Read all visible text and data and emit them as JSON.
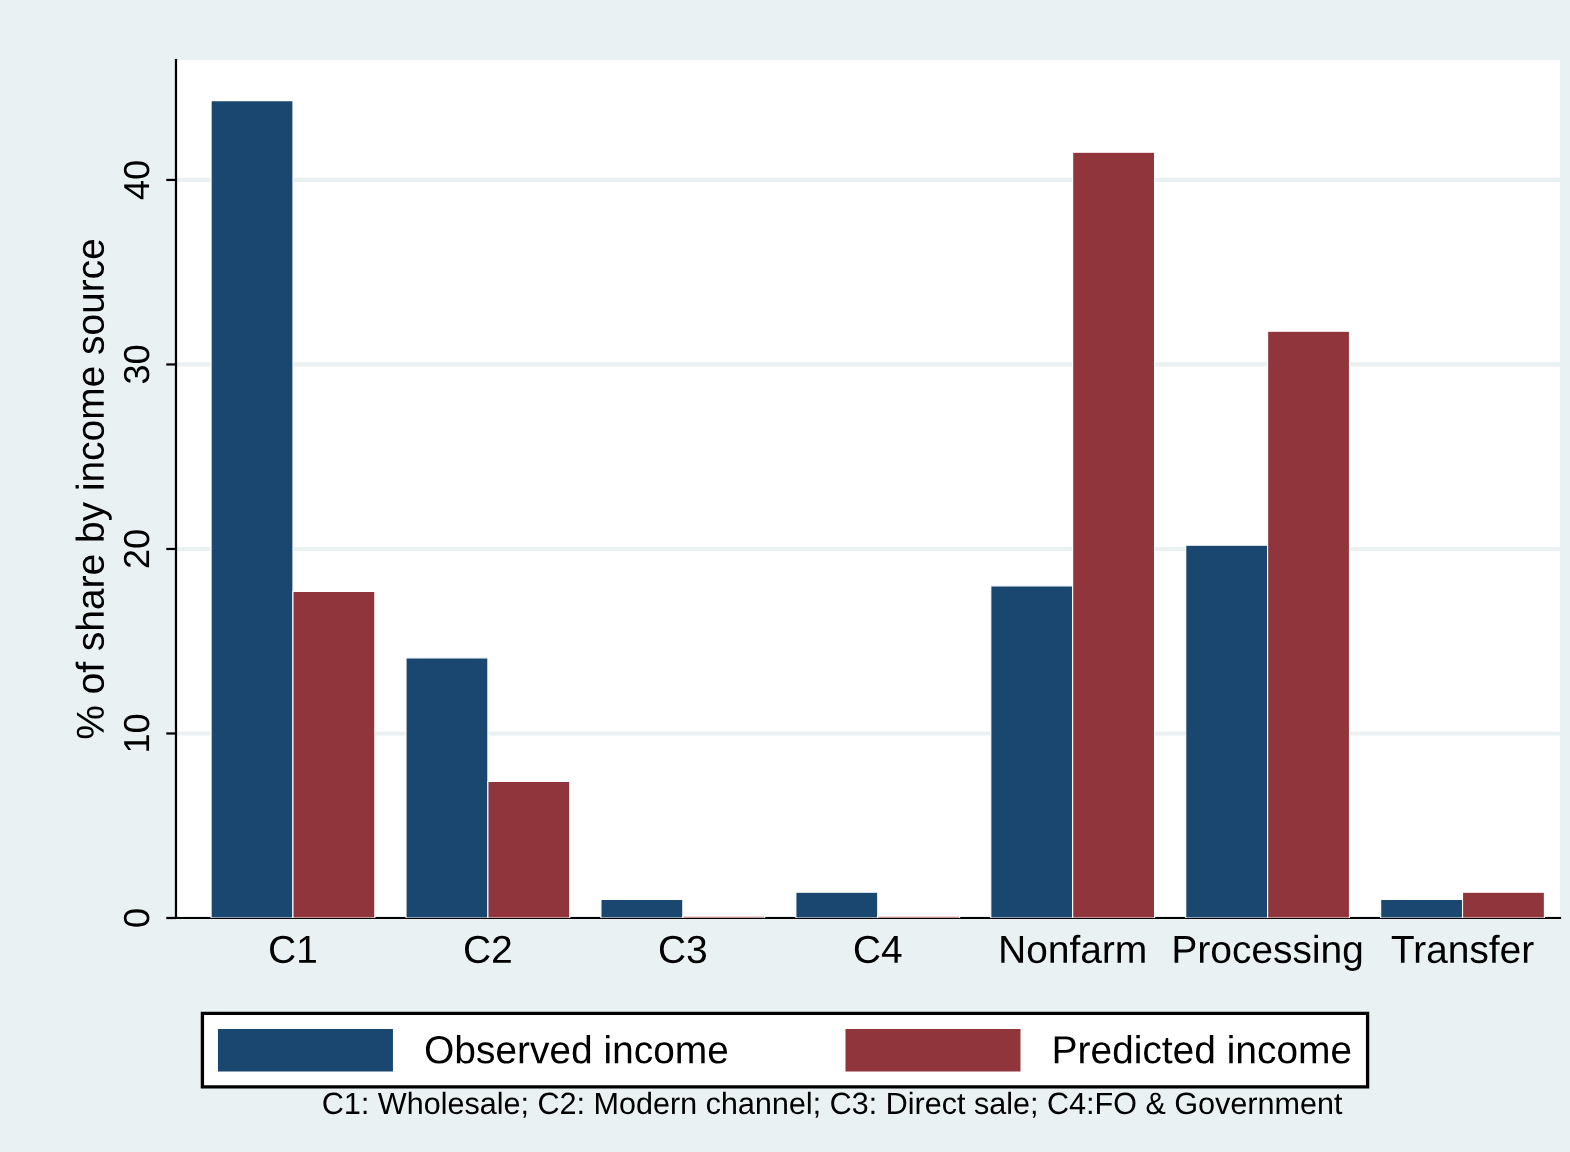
{
  "chart_data": {
    "type": "bar",
    "ylabel": "% of share by income source",
    "categories": [
      "C1",
      "C2",
      "C3",
      "C4",
      "Nonfarm",
      "Processing",
      "Transfer"
    ],
    "series": [
      {
        "name": "Observed income",
        "color": "#1a476f",
        "values": [
          44.3,
          14.1,
          1.0,
          1.4,
          18.0,
          20.2,
          1.0
        ]
      },
      {
        "name": "Predicted income",
        "color": "#90353b",
        "values": [
          17.7,
          7.4,
          0.1,
          0.1,
          41.5,
          31.8,
          1.4
        ]
      }
    ],
    "ylim": [
      0,
      46.5
    ],
    "yticks": [
      0,
      10,
      20,
      30,
      40
    ],
    "grid": "y",
    "legend": "bottom",
    "annotations": [
      "C1: Wholesale; C2: Modern channel; C3: Direct sale; C4:FO & Government"
    ]
  }
}
